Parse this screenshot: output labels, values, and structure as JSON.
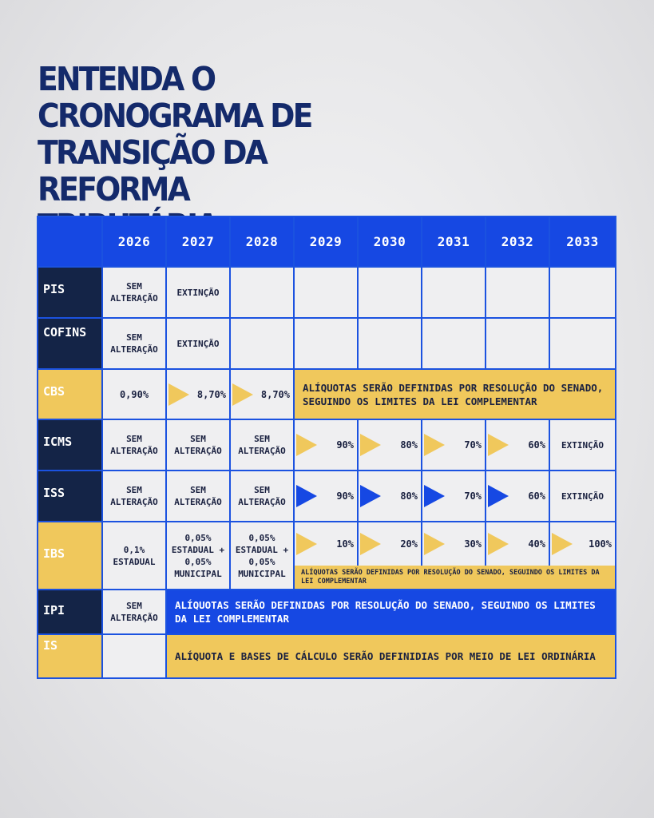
{
  "title": [
    "ENTENDA O CRONOGRAMA DE",
    "TRANSIÇÃO DA REFORMA",
    "TRIBUTÁRIA"
  ],
  "years": [
    "2026",
    "2027",
    "2028",
    "2029",
    "2030",
    "2031",
    "2032",
    "2033"
  ],
  "rows": {
    "pis": {
      "label": "PIS",
      "c2026": "SEM ALTERAÇÃO",
      "c2027": "EXTINÇÃO"
    },
    "cofins": {
      "label": "COFINS",
      "c2026": "SEM ALTERAÇÃO",
      "c2027": "EXTINÇÃO"
    },
    "cbs": {
      "label": "CBS",
      "c2026": "0,90%",
      "c2027": "8,70%",
      "c2028": "8,70%",
      "span": "ALÍQUOTAS SERÃO DEFINIDAS POR RESOLUÇÃO DO SENADO, SEGUINDO OS LIMITES DA LEI COMPLEMENTAR"
    },
    "icms": {
      "label": "ICMS",
      "c2026": "SEM ALTERAÇÃO",
      "c2027": "SEM ALTERAÇÃO",
      "c2028": "SEM ALTERAÇÃO",
      "c2029": "90%",
      "c2030": "80%",
      "c2031": "70%",
      "c2032": "60%",
      "c2033": "EXTINÇÃO"
    },
    "iss": {
      "label": "ISS",
      "c2026": "SEM ALTERAÇÃO",
      "c2027": "SEM ALTERAÇÃO",
      "c2028": "SEM ALTERAÇÃO",
      "c2029": "90%",
      "c2030": "80%",
      "c2031": "70%",
      "c2032": "60%",
      "c2033": "EXTINÇÃO"
    },
    "ibs": {
      "label": "IBS",
      "c2026": "0,1% ESTADUAL",
      "c2027": "0,05% ESTADUAL + 0,05% MUNICIPAL",
      "c2028": "0,05% ESTADUAL + 0,05% MUNICIPAL",
      "c2029": "10%",
      "c2030": "20%",
      "c2031": "30%",
      "c2032": "40%",
      "c2033": "100%",
      "note": "ALÍQUOTAS SERÃO DEFINIDAS POR RESOLUÇÃO DO SENADO, SEGUINDO OS LIMITES DA LEI COMPLEMENTAR"
    },
    "ipi": {
      "label": "IPI",
      "c2026": "SEM ALTERAÇÃO",
      "span": "ALÍQUOTAS SERÃO DEFINIDAS POR RESOLUÇÃO DO SENADO, SEGUINDO OS LIMITES DA LEI COMPLEMENTAR"
    },
    "is": {
      "label": "IS",
      "span": "ALÍQUOTA E BASES DE CÁLCULO SERÃO DEFINIDIAS POR MEIO DE LEI ORDINÁRIA"
    }
  },
  "colors": {
    "navy": "#142447",
    "blue": "#1648e3",
    "gold": "#f0c85c",
    "title": "#142a6b"
  }
}
